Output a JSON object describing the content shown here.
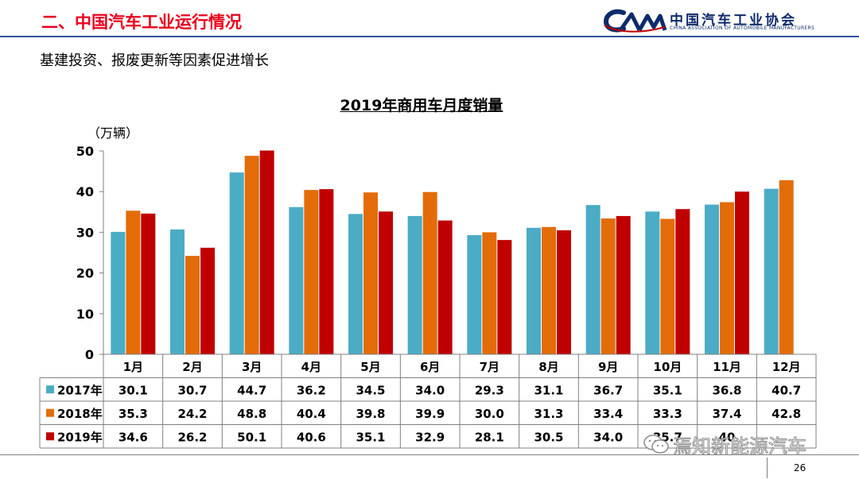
{
  "header": {
    "section_title": "二、中国汽车工业运行情况",
    "logo_text_cn": "中国汽车工业协会",
    "logo_text_en": "CHINA ASSOCIATION OF AUTOMOBILE MANUFACTURERS",
    "logo_mark": "CAM"
  },
  "subtitle": "基建投资、报废更新等因素促进增长",
  "chart_data": {
    "type": "bar",
    "title": "2019年商用车月度销量",
    "ylabel": "（万辆）",
    "xlabel": "",
    "ylim": [
      0,
      50
    ],
    "yticks": [
      "0",
      "10",
      "20",
      "30",
      "40",
      "50"
    ],
    "categories": [
      "1月",
      "2月",
      "3月",
      "4月",
      "5月",
      "6月",
      "7月",
      "8月",
      "9月",
      "10月",
      "11月",
      "12月"
    ],
    "series": [
      {
        "name": "2017年",
        "color": "#4bacc6",
        "values": [
          30.1,
          30.7,
          44.7,
          36.2,
          34.5,
          34.0,
          29.3,
          31.1,
          36.7,
          35.1,
          36.8,
          40.7
        ],
        "labels": [
          "30.1",
          "30.7",
          "44.7",
          "36.2",
          "34.5",
          "34.0",
          "29.3",
          "31.1",
          "36.7",
          "35.1",
          "36.8",
          "40.7"
        ]
      },
      {
        "name": "2018年",
        "color": "#e36c09",
        "values": [
          35.3,
          24.2,
          48.8,
          40.4,
          39.8,
          39.9,
          30.0,
          31.3,
          33.4,
          33.3,
          37.4,
          42.8
        ],
        "labels": [
          "35.3",
          "24.2",
          "48.8",
          "40.4",
          "39.8",
          "39.9",
          "30.0",
          "31.3",
          "33.4",
          "33.3",
          "37.4",
          "42.8"
        ]
      },
      {
        "name": "2019年",
        "color": "#c00000",
        "values": [
          34.6,
          26.2,
          50.1,
          40.6,
          35.1,
          32.9,
          28.1,
          30.5,
          34.0,
          35.7,
          40,
          null
        ],
        "labels": [
          "34.6",
          "26.2",
          "50.1",
          "40.6",
          "35.1",
          "32.9",
          "28.1",
          "30.5",
          "34.0",
          "35.7",
          "40",
          ""
        ]
      }
    ],
    "grid": false,
    "legend": "data-table"
  },
  "footer": {
    "page_number": "26",
    "watermark": "焉知新能源汽车"
  }
}
